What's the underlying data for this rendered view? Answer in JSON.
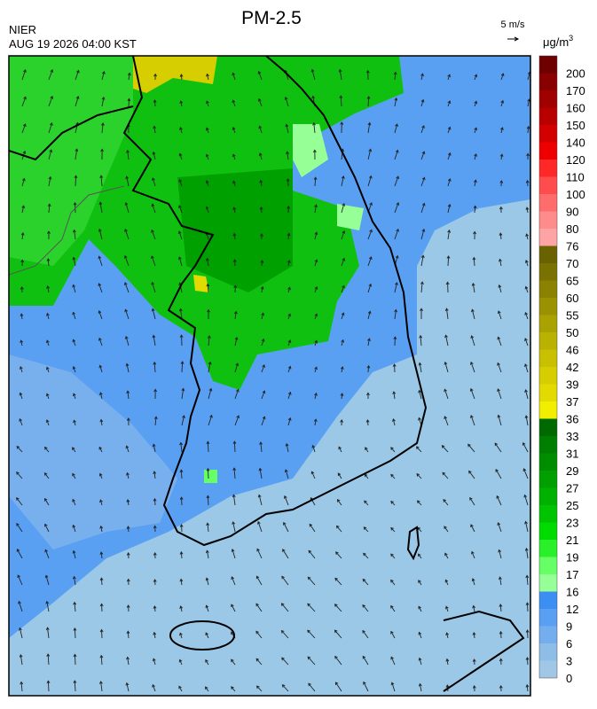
{
  "header": {
    "title": "PM-2.5",
    "source": "NIER",
    "time": "AUG 19 2026 04:00 KST"
  },
  "wind_scale": {
    "label": "5 m/s"
  },
  "legend": {
    "unit": "μg/m",
    "unit_power": "3",
    "labels": [
      "200",
      "170",
      "160",
      "150",
      "140",
      "120",
      "110",
      "100",
      "90",
      "80",
      "76",
      "70",
      "65",
      "60",
      "55",
      "50",
      "46",
      "42",
      "39",
      "37",
      "36",
      "33",
      "31",
      "29",
      "27",
      "25",
      "23",
      "21",
      "19",
      "17",
      "16",
      "12",
      "9",
      "6",
      "3",
      "0"
    ],
    "colors": [
      "#6e0000",
      "#880000",
      "#a00000",
      "#b80000",
      "#d20000",
      "#ee0000",
      "#ff2828",
      "#ff4c4c",
      "#ff6c6c",
      "#ff8c8c",
      "#ffa4a4",
      "#6a6200",
      "#7a7200",
      "#8a8200",
      "#9a9200",
      "#aaa200",
      "#bab200",
      "#c8c000",
      "#d6ce00",
      "#e2da00",
      "#f2ee00",
      "#006a00",
      "#007e00",
      "#008e00",
      "#00a000",
      "#00b200",
      "#00c400",
      "#00dc00",
      "#2af02a",
      "#66ff66",
      "#96ff96",
      "#3c8ef2",
      "#5aa0f2",
      "#74aeee",
      "#8ebee8",
      "#a0c8e6"
    ]
  }
}
